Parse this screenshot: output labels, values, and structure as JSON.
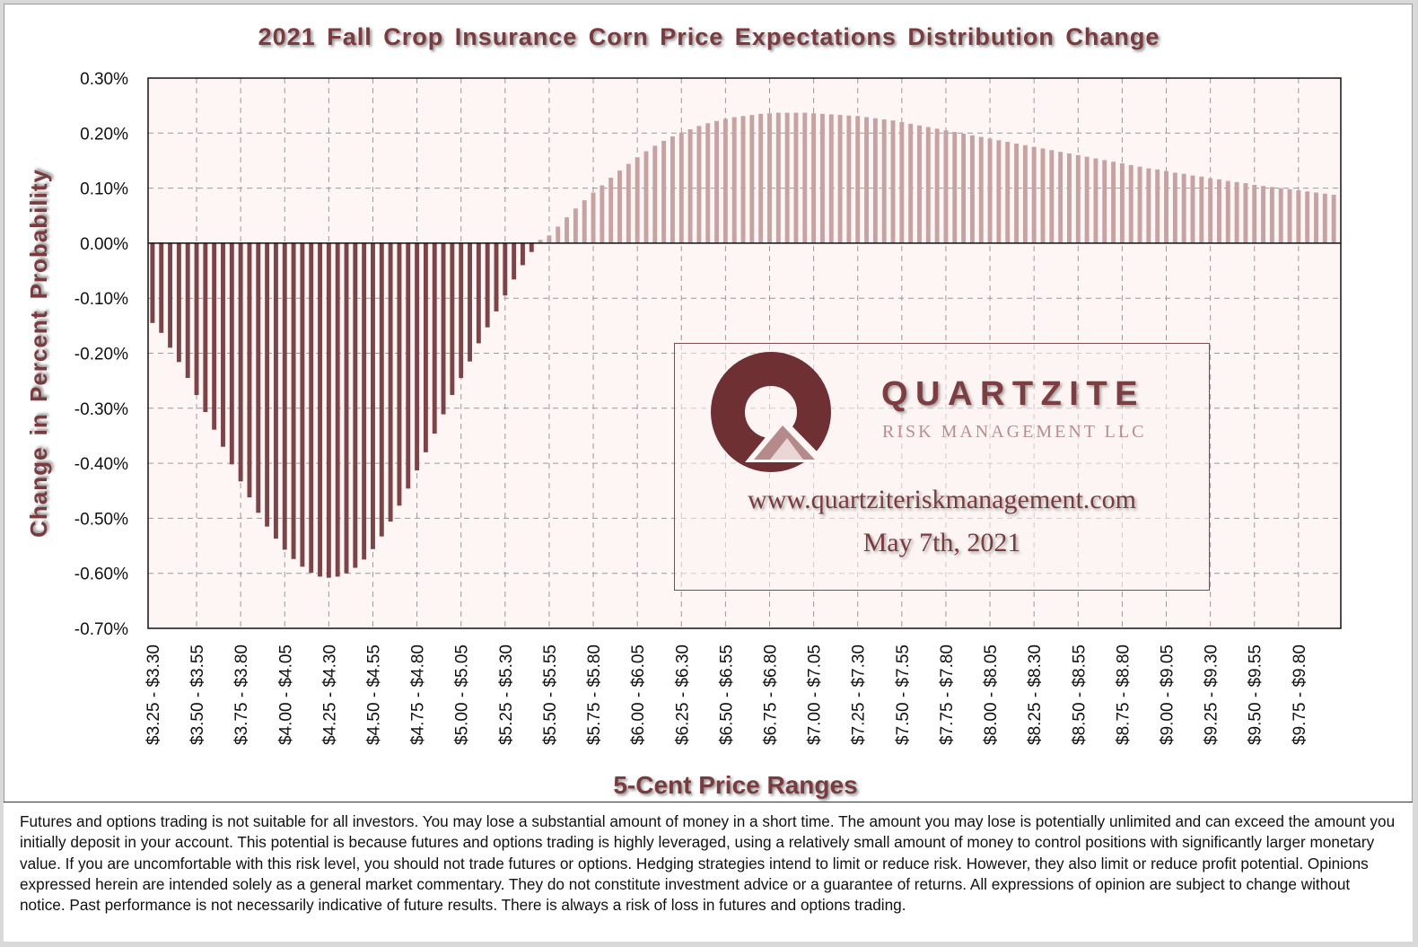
{
  "chart_data": {
    "type": "bar",
    "title": "2021 Fall Crop Insurance Corn Price Expectations Distribution Change",
    "xlabel": "5-Cent Price Ranges",
    "ylabel": "Change in Percent Probability",
    "ylim": [
      -0.7,
      0.3
    ],
    "y_ticks": [
      "0.30%",
      "0.20%",
      "0.10%",
      "0.00%",
      "-0.10%",
      "-0.20%",
      "-0.30%",
      "-0.40%",
      "-0.50%",
      "-0.60%",
      "-0.70%"
    ],
    "grid": true,
    "colors": {
      "negative": "#7d4346",
      "positive": "#c6a2a2",
      "plot_bg": "#fdf6f4",
      "text": "#7a3b3f"
    },
    "x_tick_labels": [
      "$3.25 - $3.30",
      "$3.50 - $3.55",
      "$3.75 - $3.80",
      "$4.00 - $4.05",
      "$4.25 - $4.30",
      "$4.50 - $4.55",
      "$4.75 - $4.80",
      "$5.00 - $5.05",
      "$5.25 - $5.30",
      "$5.50 - $5.55",
      "$5.75 - $5.80",
      "$6.00 - $6.05",
      "$6.25 - $6.30",
      "$6.50 - $6.55",
      "$6.75 - $6.80",
      "$7.00 - $7.05",
      "$7.25 - $7.30",
      "$7.50 - $7.55",
      "$7.75 - $7.80",
      "$8.00 - $8.05",
      "$8.25 - $8.30",
      "$8.50 - $8.55",
      "$8.75 - $8.80",
      "$9.00 - $9.05",
      "$9.25 - $9.30",
      "$9.50 - $9.55",
      "$9.75 - $9.80"
    ],
    "values": [
      -0.145,
      -0.163,
      -0.19,
      -0.216,
      -0.245,
      -0.276,
      -0.307,
      -0.339,
      -0.37,
      -0.402,
      -0.433,
      -0.462,
      -0.49,
      -0.515,
      -0.537,
      -0.557,
      -0.574,
      -0.588,
      -0.599,
      -0.606,
      -0.608,
      -0.606,
      -0.6,
      -0.59,
      -0.575,
      -0.556,
      -0.533,
      -0.506,
      -0.477,
      -0.446,
      -0.413,
      -0.38,
      -0.346,
      -0.311,
      -0.276,
      -0.245,
      -0.215,
      -0.182,
      -0.153,
      -0.124,
      -0.095,
      -0.066,
      -0.04,
      -0.016,
      0.006,
      0.014,
      0.03,
      0.047,
      0.063,
      0.078,
      0.092,
      0.105,
      0.119,
      0.132,
      0.144,
      0.156,
      0.167,
      0.177,
      0.186,
      0.194,
      0.201,
      0.207,
      0.213,
      0.218,
      0.222,
      0.226,
      0.229,
      0.231,
      0.233,
      0.235,
      0.236,
      0.237,
      0.237,
      0.237,
      0.237,
      0.236,
      0.235,
      0.234,
      0.233,
      0.232,
      0.231,
      0.229,
      0.227,
      0.225,
      0.223,
      0.22,
      0.217,
      0.214,
      0.211,
      0.208,
      0.205,
      0.202,
      0.199,
      0.196,
      0.193,
      0.19,
      0.187,
      0.184,
      0.181,
      0.178,
      0.175,
      0.172,
      0.169,
      0.166,
      0.163,
      0.16,
      0.157,
      0.154,
      0.151,
      0.148,
      0.145,
      0.142,
      0.139,
      0.136,
      0.134,
      0.131,
      0.128,
      0.126,
      0.123,
      0.121,
      0.118,
      0.116,
      0.113,
      0.111,
      0.109,
      0.106,
      0.104,
      0.102,
      0.1,
      0.098,
      0.096,
      0.094,
      0.092,
      0.09,
      0.088
    ]
  },
  "watermark": {
    "brand": "QUARTZITE",
    "subtitle": "RISK MANAGEMENT LLC",
    "url": "www.quartziteriskmanagement.com",
    "date": "May 7th, 2021"
  },
  "disclaimer": "Futures and options trading is not suitable for all investors. You may lose a substantial amount of money in a short time. The amount you may lose is potentially unlimited and can exceed the amount you initially deposit in your account. This potential is because futures and options trading is highly leveraged, using a relatively small amount of money to control positions with significantly larger monetary value. If you are uncomfortable with this risk level, you should not trade futures or options. Hedging strategies intend to limit or reduce risk. However, they also limit or reduce profit potential. Opinions expressed herein are intended solely as a general market commentary. They do not constitute investment advice or a guarantee of returns. All expressions of opinion are subject to change without notice. Past performance is not necessarily indicative of future results. There is always a risk of loss in futures and options trading."
}
